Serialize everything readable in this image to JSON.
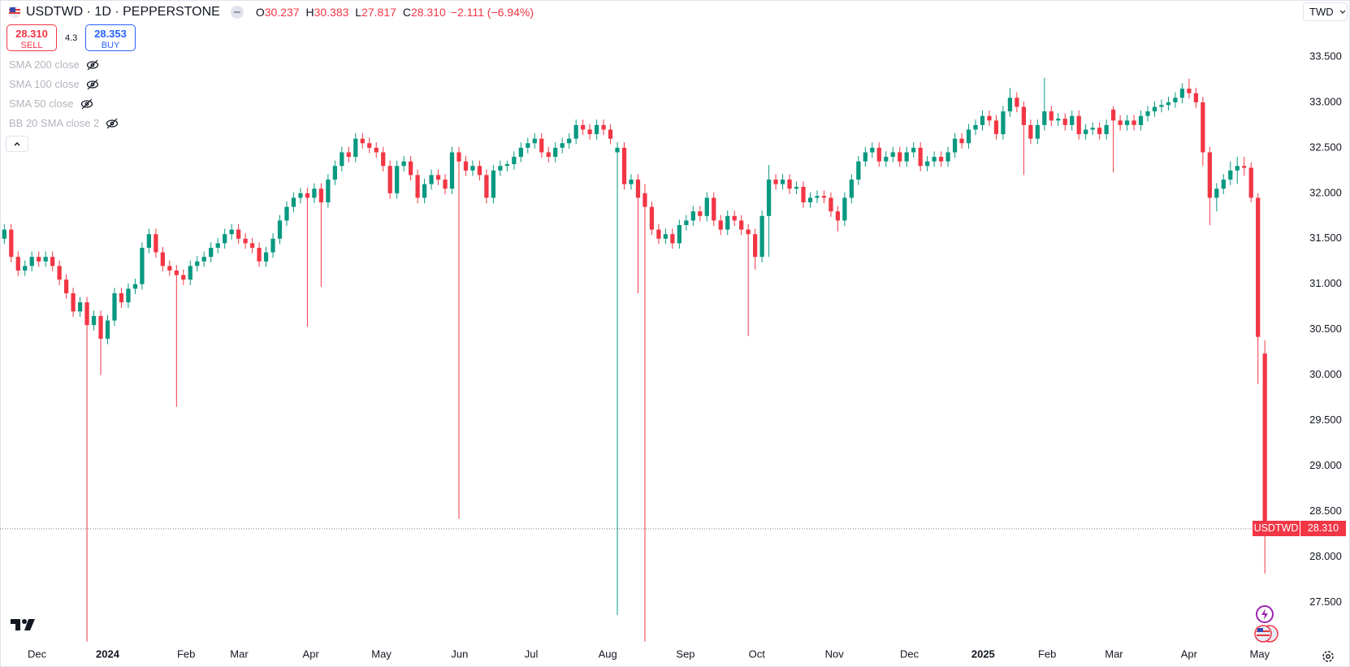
{
  "header": {
    "symbol": "USDTWD · 1D · PEPPERSTONE",
    "ohlc": [
      {
        "label": "O",
        "value": "30.237"
      },
      {
        "label": "H",
        "value": "30.383"
      },
      {
        "label": "L",
        "value": "27.817"
      },
      {
        "label": "C",
        "value": "28.310"
      }
    ],
    "change": "−2.111 (−6.94%)"
  },
  "sell": {
    "price": "28.310",
    "label": "SELL"
  },
  "spread": "4.3",
  "buy": {
    "price": "28.353",
    "label": "BUY"
  },
  "indicators": [
    "SMA 200 close",
    "SMA 100 close",
    "SMA 50 close",
    "BB 20 SMA close 2"
  ],
  "currency": "TWD",
  "price_tag": {
    "symbol": "USDTWD",
    "price": "28.310"
  },
  "chart_data": {
    "type": "candlestick",
    "up_color": "#089981",
    "down_color": "#f23645",
    "grid": false,
    "xlim": [
      -0.625,
      188.05
    ],
    "ylim": [
      27.04,
      34.125
    ],
    "xticks": [
      {
        "value": 4.75,
        "label": "Dec"
      },
      {
        "value": 15,
        "label": "2024"
      },
      {
        "value": 26.4,
        "label": "Feb"
      },
      {
        "value": 34.1,
        "label": "Mar"
      },
      {
        "value": 44.5,
        "label": "Apr"
      },
      {
        "value": 54.75,
        "label": "May"
      },
      {
        "value": 66.1,
        "label": "Jun"
      },
      {
        "value": 76.5,
        "label": "Jul"
      },
      {
        "value": 87.6,
        "label": "Aug"
      },
      {
        "value": 98.9,
        "label": "Sep"
      },
      {
        "value": 109.25,
        "label": "Oct"
      },
      {
        "value": 120.5,
        "label": "Nov"
      },
      {
        "value": 131.4,
        "label": "Dec"
      },
      {
        "value": 142.1,
        "label": "2025"
      },
      {
        "value": 151.4,
        "label": "Feb"
      },
      {
        "value": 161.1,
        "label": "Mar"
      },
      {
        "value": 172,
        "label": "Apr"
      },
      {
        "value": 182.25,
        "label": "May"
      }
    ],
    "yticks": [
      {
        "value": 27.5,
        "label": "27.500"
      },
      {
        "value": 28,
        "label": "28.000"
      },
      {
        "value": 28.5,
        "label": "28.500"
      },
      {
        "value": 29,
        "label": "29.000"
      },
      {
        "value": 29.5,
        "label": "29.500"
      },
      {
        "value": 30,
        "label": "30.000"
      },
      {
        "value": 30.5,
        "label": "30.500"
      },
      {
        "value": 31,
        "label": "31.000"
      },
      {
        "value": 31.5,
        "label": "31.500"
      },
      {
        "value": 32,
        "label": "32.000"
      },
      {
        "value": 32.5,
        "label": "32.500"
      },
      {
        "value": 33,
        "label": "33.000"
      },
      {
        "value": 33.5,
        "label": "33.500"
      }
    ],
    "candles": [
      [
        31.5,
        31.66,
        31.44,
        31.6
      ],
      [
        31.6,
        31.66,
        31.24,
        31.3
      ],
      [
        31.3,
        31.36,
        31.09,
        31.15
      ],
      [
        31.15,
        31.26,
        31.09,
        31.2
      ],
      [
        31.2,
        31.36,
        31.14,
        31.3
      ],
      [
        31.3,
        31.36,
        31.19,
        31.25
      ],
      [
        31.25,
        31.36,
        31.19,
        31.3
      ],
      [
        31.3,
        31.36,
        31.14,
        31.2
      ],
      [
        31.2,
        31.26,
        30.99,
        31.05
      ],
      [
        31.05,
        31.11,
        30.84,
        30.9
      ],
      [
        30.9,
        30.96,
        30.64,
        30.7
      ],
      [
        30.7,
        30.86,
        30.64,
        30.8
      ],
      [
        30.8,
        30.86,
        27.07,
        30.55
      ],
      [
        30.55,
        30.71,
        30.49,
        30.65
      ],
      [
        30.65,
        30.71,
        30.0,
        30.4
      ],
      [
        30.4,
        30.66,
        30.34,
        30.6
      ],
      [
        30.6,
        30.96,
        30.54,
        30.9
      ],
      [
        30.9,
        30.96,
        30.74,
        30.8
      ],
      [
        30.8,
        31.01,
        30.74,
        30.95
      ],
      [
        30.95,
        31.06,
        30.89,
        31.0
      ],
      [
        31.0,
        31.46,
        30.94,
        31.4
      ],
      [
        31.4,
        31.61,
        31.34,
        31.55
      ],
      [
        31.55,
        31.61,
        31.29,
        31.35
      ],
      [
        31.35,
        31.41,
        31.14,
        31.2
      ],
      [
        31.2,
        31.26,
        31.09,
        31.15
      ],
      [
        31.15,
        31.21,
        29.65,
        31.1
      ],
      [
        31.1,
        31.16,
        30.99,
        31.05
      ],
      [
        31.05,
        31.26,
        30.99,
        31.2
      ],
      [
        31.2,
        31.31,
        31.14,
        31.25
      ],
      [
        31.25,
        31.36,
        31.19,
        31.3
      ],
      [
        31.3,
        31.46,
        31.24,
        31.4
      ],
      [
        31.4,
        31.51,
        31.34,
        31.45
      ],
      [
        31.45,
        31.61,
        31.39,
        31.55
      ],
      [
        31.55,
        31.66,
        31.49,
        31.6
      ],
      [
        31.6,
        31.66,
        31.44,
        31.5
      ],
      [
        31.5,
        31.56,
        31.39,
        31.45
      ],
      [
        31.45,
        31.51,
        31.34,
        31.4
      ],
      [
        31.4,
        31.46,
        31.19,
        31.25
      ],
      [
        31.25,
        31.41,
        31.19,
        31.35
      ],
      [
        31.35,
        31.56,
        31.29,
        31.5
      ],
      [
        31.5,
        31.76,
        31.44,
        31.7
      ],
      [
        31.7,
        31.91,
        31.64,
        31.85
      ],
      [
        31.85,
        32.01,
        31.79,
        31.95
      ],
      [
        31.95,
        32.06,
        31.89,
        32.0
      ],
      [
        32.0,
        32.06,
        30.53,
        31.95
      ],
      [
        31.95,
        32.11,
        31.89,
        32.05
      ],
      [
        32.05,
        32.11,
        30.97,
        31.9
      ],
      [
        31.9,
        32.21,
        31.84,
        32.15
      ],
      [
        32.15,
        32.36,
        32.09,
        32.3
      ],
      [
        32.3,
        32.51,
        32.24,
        32.45
      ],
      [
        32.45,
        32.51,
        32.34,
        32.4
      ],
      [
        32.4,
        32.66,
        32.34,
        32.6
      ],
      [
        32.6,
        32.66,
        32.49,
        32.55
      ],
      [
        32.55,
        32.61,
        32.44,
        32.5
      ],
      [
        32.5,
        32.56,
        32.39,
        32.45
      ],
      [
        32.45,
        32.51,
        32.24,
        32.3
      ],
      [
        32.3,
        32.36,
        31.94,
        32.0
      ],
      [
        32.0,
        32.36,
        31.94,
        32.3
      ],
      [
        32.3,
        32.41,
        32.24,
        32.35
      ],
      [
        32.35,
        32.41,
        32.14,
        32.2
      ],
      [
        32.2,
        32.26,
        31.89,
        31.95
      ],
      [
        31.95,
        32.16,
        31.89,
        32.1
      ],
      [
        32.1,
        32.26,
        32.04,
        32.2
      ],
      [
        32.2,
        32.26,
        32.09,
        32.15
      ],
      [
        32.15,
        32.21,
        31.99,
        32.05
      ],
      [
        32.05,
        32.51,
        31.99,
        32.45
      ],
      [
        32.45,
        32.51,
        28.42,
        32.35
      ],
      [
        32.35,
        32.41,
        32.19,
        32.25
      ],
      [
        32.25,
        32.36,
        32.19,
        32.3
      ],
      [
        32.3,
        32.36,
        32.14,
        32.2
      ],
      [
        32.2,
        32.26,
        31.89,
        31.95
      ],
      [
        31.95,
        32.31,
        31.89,
        32.25
      ],
      [
        32.25,
        32.36,
        32.19,
        32.3
      ],
      [
        32.3,
        32.36,
        32.24,
        32.32
      ],
      [
        32.32,
        32.46,
        32.26,
        32.4
      ],
      [
        32.4,
        32.56,
        32.34,
        32.5
      ],
      [
        32.5,
        32.61,
        32.44,
        32.55
      ],
      [
        32.55,
        32.66,
        32.49,
        32.6
      ],
      [
        32.6,
        32.66,
        32.39,
        32.45
      ],
      [
        32.45,
        32.51,
        32.34,
        32.4
      ],
      [
        32.4,
        32.56,
        32.34,
        32.5
      ],
      [
        32.5,
        32.61,
        32.44,
        32.55
      ],
      [
        32.55,
        32.66,
        32.49,
        32.6
      ],
      [
        32.6,
        32.81,
        32.54,
        32.75
      ],
      [
        32.75,
        32.81,
        32.64,
        32.7
      ],
      [
        32.7,
        32.76,
        32.59,
        32.65
      ],
      [
        32.65,
        32.81,
        32.59,
        32.75
      ],
      [
        32.75,
        32.81,
        32.64,
        32.7
      ],
      [
        32.7,
        32.76,
        32.54,
        32.6
      ],
      [
        32.45,
        32.56,
        27.36,
        32.5
      ],
      [
        32.5,
        32.56,
        32.04,
        32.1
      ],
      [
        32.1,
        32.21,
        32.04,
        32.15
      ],
      [
        32.15,
        32.21,
        30.9,
        31.95
      ],
      [
        32.0,
        32.1,
        27.07,
        31.85
      ],
      [
        31.85,
        31.91,
        31.54,
        31.6
      ],
      [
        31.6,
        31.66,
        31.44,
        31.5
      ],
      [
        31.5,
        31.61,
        31.44,
        31.55
      ],
      [
        31.55,
        31.61,
        31.39,
        31.45
      ],
      [
        31.45,
        31.71,
        31.39,
        31.65
      ],
      [
        31.65,
        31.76,
        31.59,
        31.7
      ],
      [
        31.7,
        31.86,
        31.64,
        31.8
      ],
      [
        31.8,
        31.86,
        31.69,
        31.75
      ],
      [
        31.75,
        32.01,
        31.69,
        31.95
      ],
      [
        31.95,
        32.01,
        31.64,
        31.7
      ],
      [
        31.7,
        31.76,
        31.54,
        31.6
      ],
      [
        31.6,
        31.81,
        31.54,
        31.75
      ],
      [
        31.75,
        31.81,
        31.64,
        31.7
      ],
      [
        31.7,
        31.76,
        31.54,
        31.6
      ],
      [
        31.6,
        31.66,
        30.43,
        31.55
      ],
      [
        31.55,
        31.61,
        31.16,
        31.3
      ],
      [
        31.3,
        31.81,
        31.24,
        31.75
      ],
      [
        31.75,
        32.31,
        31.3,
        32.15
      ],
      [
        32.15,
        32.21,
        32.04,
        32.1
      ],
      [
        32.1,
        32.21,
        32.04,
        32.15
      ],
      [
        32.15,
        32.21,
        31.99,
        32.05
      ],
      [
        32.05,
        32.13,
        31.99,
        32.07
      ],
      [
        32.07,
        32.13,
        31.84,
        31.9
      ],
      [
        31.9,
        32.01,
        31.84,
        31.95
      ],
      [
        31.95,
        32.03,
        31.89,
        31.97
      ],
      [
        31.97,
        32.03,
        31.89,
        31.95
      ],
      [
        31.95,
        32.01,
        31.74,
        31.8
      ],
      [
        31.8,
        31.86,
        31.58,
        31.7
      ],
      [
        31.7,
        32.01,
        31.64,
        31.95
      ],
      [
        31.95,
        32.21,
        31.89,
        32.15
      ],
      [
        32.15,
        32.41,
        32.09,
        32.35
      ],
      [
        32.35,
        32.51,
        32.29,
        32.45
      ],
      [
        32.45,
        32.56,
        32.39,
        32.5
      ],
      [
        32.5,
        32.56,
        32.29,
        32.35
      ],
      [
        32.35,
        32.46,
        32.29,
        32.4
      ],
      [
        32.4,
        32.51,
        32.34,
        32.45
      ],
      [
        32.45,
        32.51,
        32.29,
        32.35
      ],
      [
        32.35,
        32.51,
        32.29,
        32.45
      ],
      [
        32.45,
        32.56,
        32.39,
        32.5
      ],
      [
        32.5,
        32.56,
        32.24,
        32.3
      ],
      [
        32.3,
        32.41,
        32.24,
        32.35
      ],
      [
        32.35,
        32.46,
        32.29,
        32.4
      ],
      [
        32.4,
        32.46,
        32.29,
        32.35
      ],
      [
        32.35,
        32.51,
        32.29,
        32.45
      ],
      [
        32.45,
        32.66,
        32.39,
        32.6
      ],
      [
        32.6,
        32.66,
        32.49,
        32.55
      ],
      [
        32.55,
        32.76,
        32.49,
        32.7
      ],
      [
        32.7,
        32.81,
        32.64,
        32.75
      ],
      [
        32.75,
        32.91,
        32.69,
        32.85
      ],
      [
        32.85,
        32.91,
        32.74,
        32.8
      ],
      [
        32.8,
        32.86,
        32.59,
        32.65
      ],
      [
        32.65,
        32.96,
        32.59,
        32.9
      ],
      [
        32.9,
        33.16,
        32.84,
        33.05
      ],
      [
        33.05,
        33.11,
        32.89,
        32.95
      ],
      [
        32.95,
        33.01,
        32.2,
        32.75
      ],
      [
        32.75,
        32.81,
        32.54,
        32.6
      ],
      [
        32.6,
        32.81,
        32.54,
        32.75
      ],
      [
        32.75,
        33.27,
        32.69,
        32.9
      ],
      [
        32.9,
        32.96,
        32.74,
        32.8
      ],
      [
        32.8,
        32.88,
        32.74,
        32.82
      ],
      [
        32.82,
        32.88,
        32.69,
        32.75
      ],
      [
        32.75,
        32.91,
        32.69,
        32.85
      ],
      [
        32.85,
        32.91,
        32.59,
        32.65
      ],
      [
        32.65,
        32.76,
        32.59,
        32.7
      ],
      [
        32.7,
        32.78,
        32.64,
        32.72
      ],
      [
        32.72,
        32.78,
        32.59,
        32.65
      ],
      [
        32.65,
        32.81,
        32.59,
        32.75
      ],
      [
        32.92,
        32.96,
        32.23,
        32.8
      ],
      [
        32.8,
        32.86,
        32.69,
        32.75
      ],
      [
        32.75,
        32.86,
        32.69,
        32.8
      ],
      [
        32.8,
        32.86,
        32.69,
        32.75
      ],
      [
        32.75,
        32.91,
        32.69,
        32.85
      ],
      [
        32.85,
        32.96,
        32.79,
        32.9
      ],
      [
        32.9,
        33.01,
        32.84,
        32.95
      ],
      [
        32.95,
        33.03,
        32.89,
        32.97
      ],
      [
        32.97,
        33.06,
        32.91,
        33.0
      ],
      [
        33.0,
        33.11,
        32.94,
        33.05
      ],
      [
        33.05,
        33.21,
        32.99,
        33.15
      ],
      [
        33.15,
        33.26,
        33.04,
        33.1
      ],
      [
        33.1,
        33.16,
        32.94,
        33.0
      ],
      [
        33.0,
        33.06,
        32.3,
        32.45
      ],
      [
        32.45,
        32.51,
        31.65,
        31.95
      ],
      [
        31.95,
        32.11,
        31.8,
        32.05
      ],
      [
        32.05,
        32.21,
        31.99,
        32.15
      ],
      [
        32.15,
        32.35,
        32.09,
        32.25
      ],
      [
        32.25,
        32.4,
        32.1,
        32.3
      ],
      [
        32.3,
        32.4,
        32.19,
        32.28
      ],
      [
        32.28,
        32.34,
        31.9,
        31.95
      ],
      [
        31.95,
        32.0,
        29.9,
        30.42
      ],
      [
        30.237,
        30.383,
        27.817,
        28.31
      ]
    ]
  }
}
